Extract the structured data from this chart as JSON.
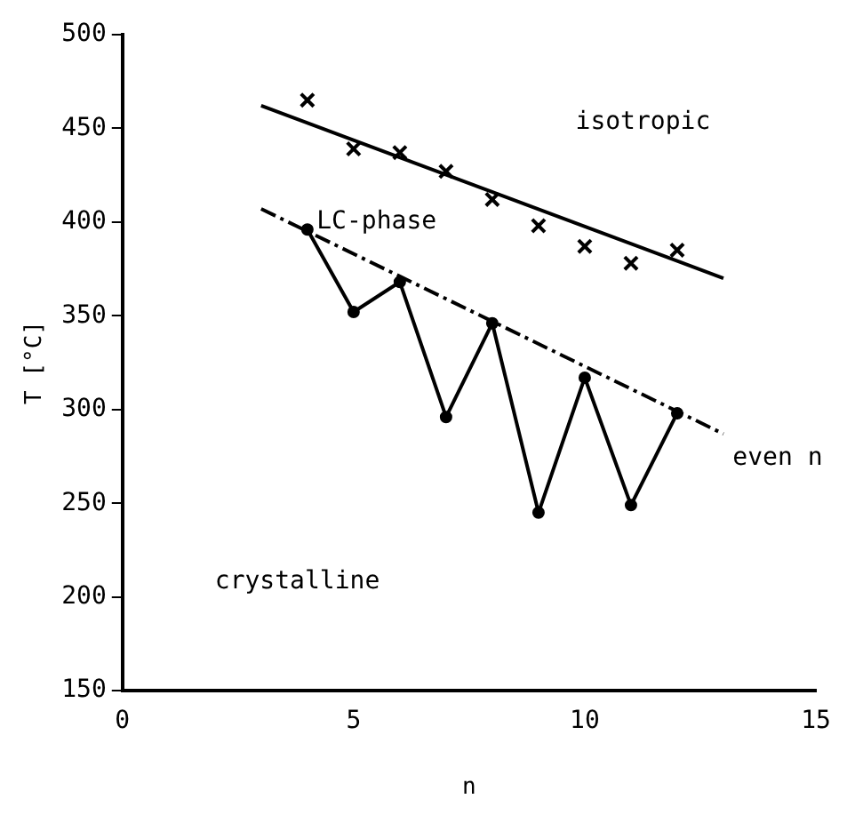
{
  "chart_data": {
    "type": "scatter",
    "xlabel": "n",
    "ylabel": "T [°C]",
    "xlim": [
      0,
      15
    ],
    "xticks": [
      0,
      5,
      10,
      15
    ],
    "ylim": [
      150,
      500
    ],
    "yticks": [
      150,
      200,
      250,
      300,
      350,
      400,
      450,
      500
    ],
    "grid": false,
    "legend": false,
    "series": [
      {
        "marker": "cross",
        "color": "#000000",
        "x": [
          4,
          5,
          6,
          7,
          8,
          9,
          10,
          11,
          12
        ],
        "values": [
          465,
          439,
          437,
          427,
          412,
          398,
          387,
          378,
          385
        ]
      },
      {
        "type": "line",
        "marker": "none",
        "line_style": "solid",
        "color": "#000000",
        "x": [
          3,
          13
        ],
        "values": [
          462,
          370
        ]
      },
      {
        "type": "line",
        "marker": "circle",
        "line_style": "solid",
        "color": "#000000",
        "x": [
          4,
          5,
          6,
          7,
          8,
          9,
          10,
          11,
          12
        ],
        "values": [
          396,
          352,
          368,
          296,
          346,
          245,
          317,
          249,
          298
        ]
      },
      {
        "type": "line",
        "marker": "none",
        "line_style": "dashed",
        "color": "#000000",
        "x": [
          3,
          13
        ],
        "values": [
          407,
          287
        ]
      }
    ],
    "annotations": [
      "isotropic",
      "LC-phase",
      "crystalline",
      "even n"
    ]
  }
}
